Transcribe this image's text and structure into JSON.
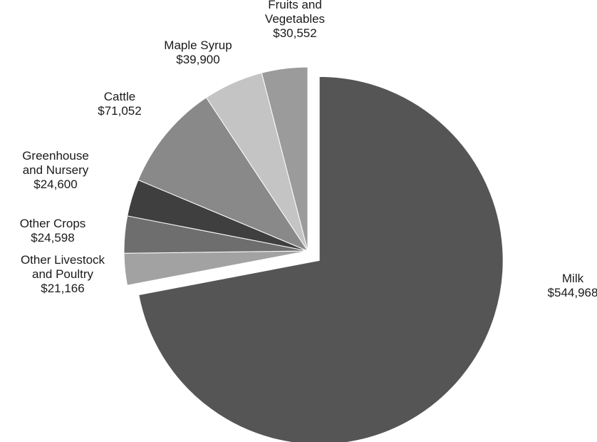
{
  "chart_data": {
    "type": "pie",
    "title": "",
    "exploded": "Milk",
    "slices": [
      {
        "name": "Milk",
        "label_lines": [
          "Milk"
        ],
        "value_label": "$544,968",
        "value": 544968,
        "color": "#555555"
      },
      {
        "name": "Other Livestock and Poultry",
        "label_lines": [
          "Other Livestock",
          "and Poultry"
        ],
        "value_label": "$21,166",
        "value": 21166,
        "color": "#a2a2a2"
      },
      {
        "name": "Other Crops",
        "label_lines": [
          "Other Crops"
        ],
        "value_label": "$24,598",
        "value": 24598,
        "color": "#6e6e6e"
      },
      {
        "name": "Greenhouse and Nursery",
        "label_lines": [
          "Greenhouse",
          "and Nursery"
        ],
        "value_label": "$24,600",
        "value": 24600,
        "color": "#3f3f3f"
      },
      {
        "name": "Cattle",
        "label_lines": [
          "Cattle"
        ],
        "value_label": "$71,052",
        "value": 71052,
        "color": "#898989"
      },
      {
        "name": "Maple Syrup",
        "label_lines": [
          "Maple Syrup"
        ],
        "value_label": "$39,900",
        "value": 39900,
        "color": "#c4c4c4"
      },
      {
        "name": "Fruits and Vegetables",
        "label_lines": [
          "Fruits and",
          "Vegetables"
        ],
        "value_label": "$30,552",
        "value": 30552,
        "color": "#9b9b9b"
      }
    ]
  }
}
